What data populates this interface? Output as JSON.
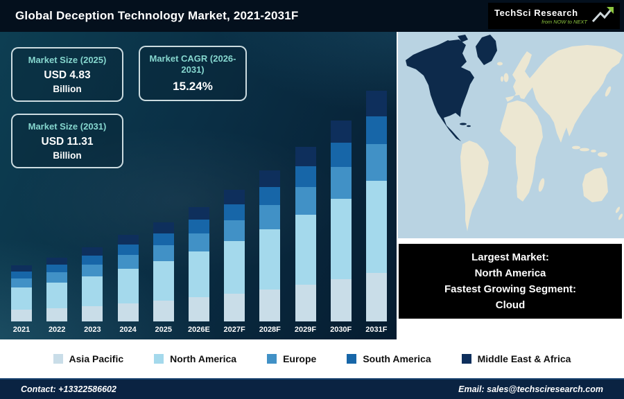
{
  "header": {
    "title": "Global Deception Technology Market, 2021-2031F",
    "logo": {
      "brand": "TechSci Research",
      "tagline": "from NOW to NEXT"
    }
  },
  "stats": [
    {
      "label": "Market Size (2025)",
      "value": "USD 4.83",
      "unit": "Billion"
    },
    {
      "label": "Market CAGR (2026-2031)",
      "value": "15.24%",
      "unit": ""
    },
    {
      "label": "Market Size (2031)",
      "value": "USD 11.31",
      "unit": "Billion"
    }
  ],
  "chart_data": {
    "type": "bar",
    "stacked": true,
    "title": "Global Deception Technology Market, 2021-2031F",
    "unit": "USD Billion",
    "categories": [
      "2021",
      "2022",
      "2023",
      "2024",
      "2025",
      "2026E",
      "2027F",
      "2028F",
      "2029F",
      "2030F",
      "2031F"
    ],
    "series": [
      {
        "name": "Asia Pacific",
        "color": "#c9dde8",
        "values": [
          0.58,
          0.66,
          0.76,
          0.88,
          1.01,
          1.17,
          1.35,
          1.55,
          1.79,
          2.06,
          2.38
        ]
      },
      {
        "name": "North America",
        "color": "#a4d9ec",
        "values": [
          1.1,
          1.26,
          1.46,
          1.68,
          1.93,
          2.23,
          2.57,
          2.96,
          3.41,
          3.93,
          4.52
        ]
      },
      {
        "name": "Europe",
        "color": "#4191c6",
        "values": [
          0.44,
          0.51,
          0.58,
          0.67,
          0.77,
          0.89,
          1.03,
          1.18,
          1.36,
          1.57,
          1.81
        ]
      },
      {
        "name": "South America",
        "color": "#1766a8",
        "values": [
          0.33,
          0.38,
          0.44,
          0.5,
          0.58,
          0.67,
          0.77,
          0.89,
          1.02,
          1.18,
          1.36
        ]
      },
      {
        "name": "Middle East & Africa",
        "color": "#0e2f5c",
        "values": [
          0.29,
          0.35,
          0.4,
          0.46,
          0.54,
          0.61,
          0.7,
          0.81,
          0.94,
          1.08,
          1.24
        ]
      }
    ],
    "totals": [
      2.74,
      3.16,
      3.64,
      4.19,
      4.83,
      5.57,
      6.42,
      7.39,
      8.52,
      9.82,
      11.31
    ],
    "ylim": [
      0,
      12
    ],
    "grid": false,
    "legend_position": "bottom"
  },
  "map": {
    "highlight_region": "North America",
    "ocean_color": "#b9d3e2",
    "land_color": "#ece7d2",
    "highlight_color": "#0d2a4b"
  },
  "callout": {
    "lines": [
      "Largest Market:",
      "North America",
      "Fastest Growing Segment:",
      "Cloud"
    ]
  },
  "legend": {
    "items": [
      {
        "label": "Asia Pacific",
        "color": "#c9dde8"
      },
      {
        "label": "North America",
        "color": "#a4d9ec"
      },
      {
        "label": "Europe",
        "color": "#4191c6"
      },
      {
        "label": "South America",
        "color": "#1766a8"
      },
      {
        "label": "Middle East & Africa",
        "color": "#0e2f5c"
      }
    ]
  },
  "footer": {
    "contact": "Contact: +13322586602",
    "email": "Email: sales@techsciresearch.com"
  }
}
